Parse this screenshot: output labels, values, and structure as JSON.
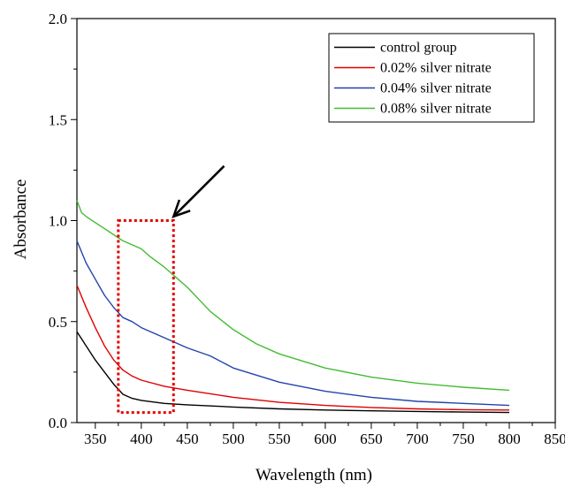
{
  "chart_data": {
    "type": "line",
    "title": "",
    "xlabel": "Wavelength (nm)",
    "ylabel": "Absorbance",
    "xlim": [
      330,
      850
    ],
    "ylim": [
      0.0,
      2.0
    ],
    "xticks": [
      350,
      400,
      450,
      500,
      550,
      600,
      650,
      700,
      750,
      800,
      850
    ],
    "yticks": [
      "0.0",
      "0.5",
      "1.0",
      "1.5",
      "2.0"
    ],
    "legend_position": "top-right",
    "grid": false,
    "series": [
      {
        "name": "control group",
        "color": "#000000",
        "x": [
          330,
          340,
          350,
          360,
          370,
          380,
          390,
          400,
          425,
          450,
          500,
          550,
          600,
          650,
          700,
          750,
          800
        ],
        "y": [
          0.45,
          0.38,
          0.31,
          0.25,
          0.19,
          0.14,
          0.12,
          0.11,
          0.095,
          0.088,
          0.077,
          0.068,
          0.062,
          0.058,
          0.055,
          0.052,
          0.05
        ]
      },
      {
        "name": "0.02% silver nitrate",
        "color": "#e00000",
        "x": [
          330,
          340,
          350,
          360,
          370,
          380,
          390,
          400,
          425,
          450,
          500,
          550,
          600,
          650,
          700,
          750,
          800
        ],
        "y": [
          0.68,
          0.57,
          0.47,
          0.38,
          0.31,
          0.26,
          0.23,
          0.21,
          0.18,
          0.16,
          0.125,
          0.1,
          0.085,
          0.075,
          0.068,
          0.064,
          0.062
        ]
      },
      {
        "name": "0.04% silver nitrate",
        "color": "#2244aa",
        "x": [
          330,
          340,
          350,
          360,
          370,
          380,
          390,
          400,
          425,
          450,
          475,
          500,
          550,
          600,
          650,
          700,
          750,
          800
        ],
        "y": [
          0.9,
          0.79,
          0.71,
          0.63,
          0.57,
          0.52,
          0.5,
          0.47,
          0.42,
          0.37,
          0.33,
          0.27,
          0.2,
          0.155,
          0.125,
          0.105,
          0.095,
          0.085
        ]
      },
      {
        "name": "0.08% silver nitrate",
        "color": "#44bb33",
        "x": [
          330,
          335,
          340,
          350,
          360,
          370,
          380,
          390,
          400,
          410,
          425,
          440,
          450,
          475,
          500,
          525,
          550,
          600,
          650,
          700,
          750,
          800
        ],
        "y": [
          1.1,
          1.04,
          1.02,
          0.99,
          0.96,
          0.93,
          0.9,
          0.88,
          0.86,
          0.82,
          0.77,
          0.71,
          0.67,
          0.55,
          0.46,
          0.39,
          0.34,
          0.27,
          0.225,
          0.195,
          0.175,
          0.16
        ]
      }
    ],
    "annotations": [
      {
        "type": "dotted-rectangle",
        "color": "#e00000",
        "x_range": [
          375,
          435
        ],
        "y_range": [
          0.05,
          1.0
        ]
      },
      {
        "type": "arrow",
        "color": "#000000",
        "from": [
          490,
          1.27
        ],
        "to": [
          435,
          1.02
        ]
      }
    ]
  }
}
